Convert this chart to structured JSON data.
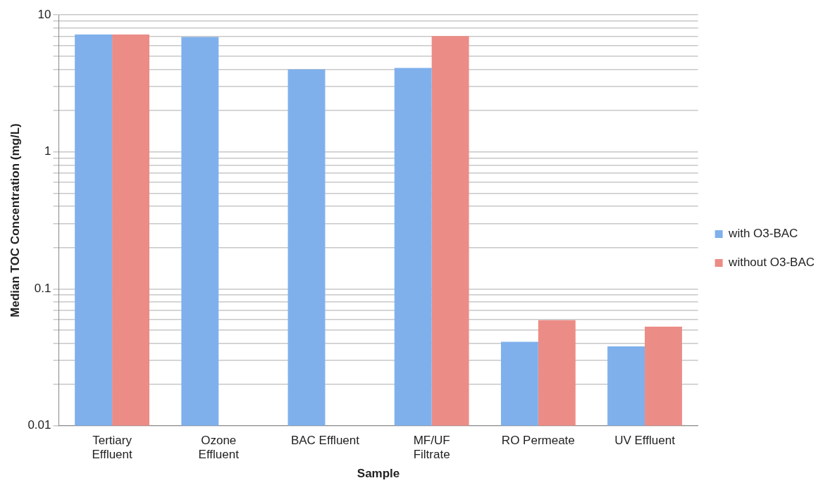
{
  "chart_data": {
    "type": "bar",
    "xlabel": "Sample",
    "ylabel": "Median TOC Concentration (mg/L)",
    "categories": [
      "Tertiary Effluent",
      "Ozone Effluent",
      "BAC Effluent",
      "MF/UF Filtrate",
      "RO Permeate",
      "UV Effluent"
    ],
    "series": [
      {
        "name": "with O3-BAC",
        "color": "#7fb0ec",
        "values": [
          7.2,
          6.9,
          4.0,
          4.1,
          0.041,
          0.038
        ]
      },
      {
        "name": "without O3-BAC",
        "color": "#ec8c86",
        "values": [
          7.2,
          null,
          null,
          7.0,
          0.059,
          0.053
        ]
      }
    ],
    "log": "y",
    "ylim": [
      0.01,
      10
    ],
    "yticks": [
      0.01,
      {
        "value": 0.02,
        "label": null
      },
      {
        "value": 0.03,
        "label": null
      },
      {
        "value": 0.04,
        "label": null
      },
      {
        "value": 0.05,
        "label": null
      },
      {
        "value": 0.06,
        "label": null
      },
      {
        "value": 0.07,
        "label": null
      },
      {
        "value": 0.08,
        "label": null
      },
      {
        "value": 0.09,
        "label": null
      },
      0.1,
      {
        "value": 0.2,
        "label": null
      },
      {
        "value": 0.3,
        "label": null
      },
      {
        "value": 0.4,
        "label": null
      },
      {
        "value": 0.5,
        "label": null
      },
      {
        "value": 0.6,
        "label": null
      },
      {
        "value": 0.7,
        "label": null
      },
      {
        "value": 0.8,
        "label": null
      },
      {
        "value": 0.9,
        "label": null
      },
      1,
      {
        "value": 2,
        "label": null
      },
      {
        "value": 3,
        "label": null
      },
      {
        "value": 4,
        "label": null
      },
      {
        "value": 5,
        "label": null
      },
      {
        "value": 6,
        "label": null
      },
      {
        "value": 7,
        "label": null
      },
      {
        "value": 8,
        "label": null
      },
      {
        "value": 9,
        "label": null
      },
      10
    ],
    "grid": "y",
    "legend": "right"
  }
}
